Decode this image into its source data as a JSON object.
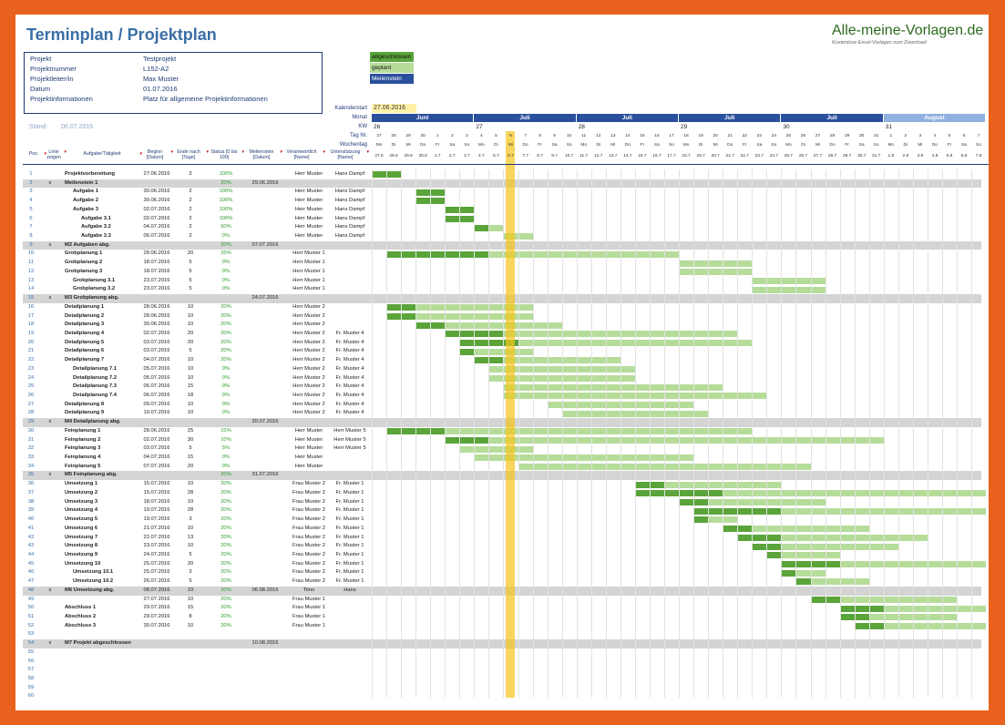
{
  "title": "Terminplan / Projektplan",
  "logo": {
    "text": "Alle-meine-Vorlagen.de",
    "sub": "Kostenlose Excel-Vorlagen zum Download"
  },
  "info": [
    {
      "label": "Projekt",
      "value": "Testprojekt"
    },
    {
      "label": "Projektnummer",
      "value": "L152-A2"
    },
    {
      "label": "Projektleiter/in",
      "value": "Max Muster"
    },
    {
      "label": "Datum",
      "value": "01.07.2016"
    },
    {
      "label": "Projektinformationen",
      "value": "Platz für allgemeine Projektinformationen"
    }
  ],
  "stand": {
    "label": "Stand:",
    "value": "06.07.2016"
  },
  "legend": [
    {
      "label": "abgeschlossen",
      "color": "#5aa43a"
    },
    {
      "label": "geplant",
      "color": "#b6dc9a"
    },
    {
      "label": "Meilenstein",
      "color": "#2a4f9c"
    }
  ],
  "kalenderstart": {
    "label": "Kalenderstart",
    "value": "27.06.2016"
  },
  "header_labels": {
    "monat": "Monat",
    "kw": "KW",
    "tag": "Tag Nr.",
    "wochentag": "Wochentag"
  },
  "columns": [
    "Pos.",
    "Linie zeigen",
    "Aufgabe/Tätigkeit",
    "Beginn [Datum]",
    "Ende nach [Tage]",
    "Status [0 bis 100]",
    "Meilenstein [Datum]",
    "Verantwortlich [Name]",
    "Unterstützung [Name]"
  ],
  "months": [
    {
      "label": "Juni",
      "start": 0,
      "span": 7
    },
    {
      "label": "Juli",
      "start": 7,
      "span": 7
    },
    {
      "label": "Juli",
      "start": 14,
      "span": 7
    },
    {
      "label": "Juli",
      "start": 21,
      "span": 7
    },
    {
      "label": "Juli",
      "start": 28,
      "span": 7
    },
    {
      "label": "August",
      "start": 35,
      "span": 7
    }
  ],
  "kws": [
    {
      "label": "26",
      "start": 0
    },
    {
      "label": "27",
      "start": 7
    },
    {
      "label": "28",
      "start": 14
    },
    {
      "label": "29",
      "start": 21
    },
    {
      "label": "30",
      "start": 28
    },
    {
      "label": "31",
      "start": 35
    }
  ],
  "day_numbers": [
    "27",
    "28",
    "29",
    "30",
    "1",
    "2",
    "3",
    "4",
    "5",
    "6",
    "7",
    "8",
    "9",
    "10",
    "11",
    "12",
    "13",
    "14",
    "15",
    "16",
    "17",
    "18",
    "19",
    "20",
    "21",
    "22",
    "23",
    "24",
    "25",
    "26",
    "27",
    "28",
    "29",
    "30",
    "31",
    "1",
    "2",
    "3",
    "4",
    "5",
    "6",
    "7"
  ],
  "weekdays": [
    "Mo",
    "Di",
    "Mi",
    "Do",
    "Fr",
    "Sa",
    "So",
    "Mo",
    "Di",
    "Mi",
    "Do",
    "Fr",
    "Sa",
    "So",
    "Mo",
    "Di",
    "Mi",
    "Do",
    "Fr",
    "Sa",
    "So",
    "Mo",
    "Di",
    "Mi",
    "Do",
    "Fr",
    "Sa",
    "So",
    "Mo",
    "Di",
    "Mi",
    "Do",
    "Fr",
    "Sa",
    "So",
    "Mo",
    "Di",
    "Mi",
    "Do",
    "Fr",
    "Sa",
    "So"
  ],
  "dates": [
    "27.6",
    "28.6",
    "29.6",
    "30.6",
    "1.7",
    "2.7",
    "3.7",
    "4.7",
    "5.7",
    "6.7",
    "7.7",
    "8.7",
    "9.7",
    "10.7",
    "11.7",
    "12.7",
    "13.7",
    "14.7",
    "15.7",
    "16.7",
    "17.7",
    "18.7",
    "19.7",
    "20.7",
    "21.7",
    "22.7",
    "23.7",
    "24.7",
    "25.7",
    "26.7",
    "27.7",
    "28.7",
    "29.7",
    "30.7",
    "31.7",
    "1.8",
    "2.8",
    "3.8",
    "4.8",
    "5.8",
    "6.8",
    "7.8"
  ],
  "today_index": 9,
  "colors": {
    "done": "#5aa43a",
    "planned": "#b6dc9a",
    "milestone": "#2a4f9c",
    "header": "#2a4f9c",
    "month_light": "#8fb0e0",
    "today": "#f5c518"
  },
  "rows": [
    {
      "pos": "1",
      "task": "Projektvorbereitung",
      "start": "27.06.2016",
      "dur": "2",
      "status": "100%",
      "resp": "Herr Muster",
      "support": "Hans Dampf",
      "ind": 0,
      "s": 0,
      "d": 2,
      "p": 1
    },
    {
      "pos": "2",
      "x": "x",
      "task": "Meilenstein 1",
      "status": "20%",
      "ms_date": "29.06.2016",
      "ind": 0,
      "ms": true,
      "m": 2
    },
    {
      "pos": "3",
      "task": "Aufgabe 1",
      "start": "30.06.2016",
      "dur": "2",
      "status": "100%",
      "resp": "Herr Muster",
      "support": "Hans Dampf",
      "ind": 1,
      "s": 3,
      "d": 2,
      "p": 1
    },
    {
      "pos": "4",
      "task": "Aufgabe 2",
      "start": "30.06.2016",
      "dur": "2",
      "status": "100%",
      "resp": "Herr Muster",
      "support": "Hans Dampf",
      "ind": 1,
      "s": 3,
      "d": 2,
      "p": 1
    },
    {
      "pos": "5",
      "task": "Aufgabe 3",
      "start": "02.07.2016",
      "dur": "2",
      "status": "100%",
      "resp": "Herr Muster",
      "support": "Hans Dampf",
      "ind": 1,
      "s": 5,
      "d": 2,
      "p": 1
    },
    {
      "pos": "6",
      "task": "Aufgabe 3.1",
      "start": "02.07.2016",
      "dur": "2",
      "status": "100%",
      "resp": "Herr Muster",
      "support": "Hans Dampf",
      "ind": 2,
      "s": 5,
      "d": 2,
      "p": 1
    },
    {
      "pos": "7",
      "task": "Aufgabe 3.2",
      "start": "04.07.2016",
      "dur": "2",
      "status": "50%",
      "resp": "Herr Muster",
      "support": "Hans Dampf",
      "ind": 2,
      "s": 7,
      "d": 2,
      "p": 0.5
    },
    {
      "pos": "8",
      "task": "Aufgabe 3.3",
      "start": "06.07.2016",
      "dur": "2",
      "status": "0%",
      "resp": "Herr Muster",
      "support": "Hans Dampf",
      "ind": 2,
      "s": 9,
      "d": 2,
      "p": 0
    },
    {
      "pos": "9",
      "x": "x",
      "task": "M2 Aufgaben abg.",
      "status": "20%",
      "ms_date": "07.07.2016",
      "ind": 0,
      "ms": true,
      "m": 10
    },
    {
      "pos": "10",
      "task": "Grobplanung 1",
      "start": "28.06.2016",
      "dur": "20",
      "status": "35%",
      "resp": "Herr Muster 1",
      "ind": 0,
      "s": 1,
      "d": 20,
      "p": 0.35
    },
    {
      "pos": "11",
      "task": "Grobplanung 2",
      "start": "18.07.2016",
      "dur": "5",
      "status": "0%",
      "resp": "Herr Muster 1",
      "ind": 0,
      "s": 21,
      "d": 5,
      "p": 0
    },
    {
      "pos": "12",
      "task": "Grobplanung 3",
      "start": "18.07.2016",
      "dur": "5",
      "status": "0%",
      "resp": "Herr Muster 1",
      "ind": 0,
      "s": 21,
      "d": 5,
      "p": 0
    },
    {
      "pos": "13",
      "task": "Grobplanung 3.1",
      "start": "23.07.2016",
      "dur": "5",
      "status": "0%",
      "resp": "Herr Muster 1",
      "ind": 1,
      "s": 26,
      "d": 5,
      "p": 0
    },
    {
      "pos": "14",
      "task": "Grobplanung 3.2",
      "start": "23.07.2016",
      "dur": "5",
      "status": "0%",
      "resp": "Herr Muster 1",
      "ind": 1,
      "s": 26,
      "d": 5,
      "p": 0
    },
    {
      "pos": "15",
      "x": "x",
      "task": "M3 Grobplanung abg.",
      "ms_date": "24.07.2016",
      "ind": 0,
      "ms": true,
      "m": 27
    },
    {
      "pos": "16",
      "task": "Detailplanung 1",
      "start": "28.06.2016",
      "dur": "10",
      "status": "20%",
      "resp": "Herr Muster 2",
      "ind": 0,
      "s": 1,
      "d": 10,
      "p": 0.2
    },
    {
      "pos": "17",
      "task": "Detailplanung 2",
      "start": "28.06.2016",
      "dur": "10",
      "status": "20%",
      "resp": "Herr Muster 2",
      "ind": 0,
      "s": 1,
      "d": 10,
      "p": 0.2
    },
    {
      "pos": "18",
      "task": "Detailplanung 3",
      "start": "30.06.2016",
      "dur": "10",
      "status": "20%",
      "resp": "Herr Muster 2",
      "ind": 0,
      "s": 3,
      "d": 10,
      "p": 0.2
    },
    {
      "pos": "19",
      "task": "Detailplanung 4",
      "start": "02.07.2016",
      "dur": "20",
      "status": "20%",
      "resp": "Herr Muster 2",
      "support": "Fr. Muster 4",
      "ind": 0,
      "s": 5,
      "d": 20,
      "p": 0.2
    },
    {
      "pos": "20",
      "task": "Detailplanung 5",
      "start": "03.07.2016",
      "dur": "20",
      "status": "20%",
      "resp": "Herr Muster 2",
      "support": "Fr. Muster 4",
      "ind": 0,
      "s": 6,
      "d": 20,
      "p": 0.2
    },
    {
      "pos": "21",
      "task": "Detailplanung 6",
      "start": "03.07.2016",
      "dur": "5",
      "status": "20%",
      "resp": "Herr Muster 2",
      "support": "Fr. Muster 4",
      "ind": 0,
      "s": 6,
      "d": 5,
      "p": 0.2
    },
    {
      "pos": "22",
      "task": "Detailplanung 7",
      "start": "04.07.2016",
      "dur": "10",
      "status": "20%",
      "resp": "Herr Muster 2",
      "support": "Fr. Muster 4",
      "ind": 0,
      "s": 7,
      "d": 10,
      "p": 0.2
    },
    {
      "pos": "23",
      "task": "Detailplanung 7.1",
      "start": "05.07.2016",
      "dur": "10",
      "status": "0%",
      "resp": "Herr Muster 2",
      "support": "Fr. Muster 4",
      "ind": 1,
      "s": 8,
      "d": 10,
      "p": 0
    },
    {
      "pos": "24",
      "task": "Detailplanung 7.2",
      "start": "05.07.2016",
      "dur": "10",
      "status": "0%",
      "resp": "Herr Muster 2",
      "support": "Fr. Muster 4",
      "ind": 1,
      "s": 8,
      "d": 10,
      "p": 0
    },
    {
      "pos": "25",
      "task": "Detailplanung 7.3",
      "start": "06.07.2016",
      "dur": "15",
      "status": "0%",
      "resp": "Herr Muster 2",
      "support": "Fr. Muster 4",
      "ind": 1,
      "s": 9,
      "d": 15,
      "p": 0
    },
    {
      "pos": "26",
      "task": "Detailplanung 7.4",
      "start": "06.07.2016",
      "dur": "18",
      "status": "0%",
      "resp": "Herr Muster 2",
      "support": "Fr. Muster 4",
      "ind": 1,
      "s": 9,
      "d": 18,
      "p": 0
    },
    {
      "pos": "27",
      "task": "Detailplanung 8",
      "start": "09.07.2016",
      "dur": "10",
      "status": "0%",
      "resp": "Herr Muster 2",
      "support": "Fr. Muster 4",
      "ind": 0,
      "s": 12,
      "d": 10,
      "p": 0
    },
    {
      "pos": "28",
      "task": "Detailplanung 9",
      "start": "10.07.2016",
      "dur": "10",
      "status": "0%",
      "resp": "Herr Muster 2",
      "support": "Fr. Muster 4",
      "ind": 0,
      "s": 13,
      "d": 10,
      "p": 0
    },
    {
      "pos": "29",
      "x": "x",
      "task": "M4 Detailplanung abg.",
      "ms_date": "20.07.2016",
      "ind": 0,
      "ms": true,
      "m": 23
    },
    {
      "pos": "30",
      "task": "Feinplanung 1",
      "start": "28.06.2016",
      "dur": "25",
      "status": "15%",
      "resp": "Herr Muster",
      "support": "Herr Muster 5",
      "ind": 0,
      "s": 1,
      "d": 25,
      "p": 0.15
    },
    {
      "pos": "31",
      "task": "Feinplanung 2",
      "start": "02.07.2016",
      "dur": "30",
      "status": "10%",
      "resp": "Herr Muster",
      "support": "Herr Muster 5",
      "ind": 0,
      "s": 5,
      "d": 30,
      "p": 0.1
    },
    {
      "pos": "32",
      "task": "Feinplanung 3",
      "start": "03.07.2016",
      "dur": "5",
      "status": "5%",
      "resp": "Herr Muster",
      "support": "Herr Muster 5",
      "ind": 0,
      "s": 6,
      "d": 5,
      "p": 0.05
    },
    {
      "pos": "33",
      "task": "Feinplanung 4",
      "start": "04.07.2016",
      "dur": "15",
      "status": "0%",
      "resp": "Herr Muster",
      "ind": 0,
      "s": 7,
      "d": 15,
      "p": 0
    },
    {
      "pos": "34",
      "task": "Feinplanung 5",
      "start": "07.07.2016",
      "dur": "20",
      "status": "0%",
      "resp": "Herr Muster",
      "ind": 0,
      "s": 10,
      "d": 20,
      "p": 0
    },
    {
      "pos": "35",
      "x": "x",
      "task": "M5 Feinplanung abg.",
      "status": "20%",
      "ms_date": "31.07.2016",
      "ind": 0,
      "ms": true,
      "m": 34
    },
    {
      "pos": "36",
      "task": "Umsetzung 1",
      "start": "15.07.2016",
      "dur": "10",
      "status": "20%",
      "resp": "Frau Muster 2",
      "support": "Fr. Muster 1",
      "ind": 0,
      "s": 18,
      "d": 10,
      "p": 0.2
    },
    {
      "pos": "37",
      "task": "Umsetzung 2",
      "start": "15.07.2016",
      "dur": "28",
      "status": "20%",
      "resp": "Frau Muster 2",
      "support": "Fr. Muster 1",
      "ind": 0,
      "s": 18,
      "d": 28,
      "p": 0.2
    },
    {
      "pos": "38",
      "task": "Umsetzung 3",
      "start": "18.07.2016",
      "dur": "10",
      "status": "20%",
      "resp": "Frau Muster 2",
      "support": "Fr. Muster 1",
      "ind": 0,
      "s": 21,
      "d": 10,
      "p": 0.2
    },
    {
      "pos": "39",
      "task": "Umsetzung 4",
      "start": "19.07.2016",
      "dur": "28",
      "status": "20%",
      "resp": "Frau Muster 2",
      "support": "Fr. Muster 1",
      "ind": 0,
      "s": 22,
      "d": 28,
      "p": 0.2
    },
    {
      "pos": "40",
      "task": "Umsetzung 5",
      "start": "19.07.2016",
      "dur": "3",
      "status": "20%",
      "resp": "Frau Muster 2",
      "support": "Fr. Muster 1",
      "ind": 0,
      "s": 22,
      "d": 3,
      "p": 0.2
    },
    {
      "pos": "41",
      "task": "Umsetzung 6",
      "start": "21.07.2016",
      "dur": "10",
      "status": "20%",
      "resp": "Frau Muster 2",
      "support": "Fr. Muster 1",
      "ind": 0,
      "s": 24,
      "d": 10,
      "p": 0.2
    },
    {
      "pos": "42",
      "task": "Umsetzung 7",
      "start": "22.07.2016",
      "dur": "13",
      "status": "20%",
      "resp": "Frau Muster 2",
      "support": "Fr. Muster 1",
      "ind": 0,
      "s": 25,
      "d": 13,
      "p": 0.2
    },
    {
      "pos": "43",
      "task": "Umsetzung 8",
      "start": "23.07.2016",
      "dur": "10",
      "status": "20%",
      "resp": "Frau Muster 2",
      "support": "Fr. Muster 1",
      "ind": 0,
      "s": 26,
      "d": 10,
      "p": 0.2
    },
    {
      "pos": "44",
      "task": "Umsetzung 9",
      "start": "24.07.2016",
      "dur": "5",
      "status": "20%",
      "resp": "Frau Muster 2",
      "support": "Fr. Muster 1",
      "ind": 0,
      "s": 27,
      "d": 5,
      "p": 0.2
    },
    {
      "pos": "45",
      "task": "Umsetzung 10",
      "start": "25.07.2016",
      "dur": "20",
      "status": "20%",
      "resp": "Frau Muster 2",
      "support": "Fr. Muster 1",
      "ind": 0,
      "s": 28,
      "d": 20,
      "p": 0.2
    },
    {
      "pos": "46",
      "task": "Umsetzung 10.1",
      "start": "25.07.2016",
      "dur": "3",
      "status": "20%",
      "resp": "Frau Muster 2",
      "support": "Fr. Muster 1",
      "ind": 1,
      "s": 28,
      "d": 3,
      "p": 0.2
    },
    {
      "pos": "47",
      "task": "Umsetzung 10.2",
      "start": "26.07.2016",
      "dur": "5",
      "status": "20%",
      "resp": "Frau Muster 2",
      "support": "Fr. Muster 1",
      "ind": 1,
      "s": 29,
      "d": 5,
      "p": 0.2
    },
    {
      "pos": "48",
      "x": "x",
      "task": "M6 Umsetzung abg.",
      "start": "08.07.2016",
      "dur": "10",
      "status": "20%",
      "ms_date": "06.08.2016",
      "resp": "Timo",
      "support": "Hans",
      "ind": 0,
      "ms": true,
      "m": 40,
      "s": 11,
      "d": 10,
      "p": 0.2
    },
    {
      "pos": "49",
      "start": "27.07.2016",
      "dur": "10",
      "status": "20%",
      "resp": "Frau Muster 1",
      "ind": 0,
      "s": 30,
      "d": 10,
      "p": 0.2
    },
    {
      "pos": "50",
      "task": "Abschluss 1",
      "start": "29.07.2016",
      "dur": "15",
      "status": "20%",
      "resp": "Frau Muster 1",
      "ind": 0,
      "s": 32,
      "d": 15,
      "p": 0.2
    },
    {
      "pos": "51",
      "task": "Abschluss 2",
      "start": "29.07.2016",
      "dur": "8",
      "status": "20%",
      "resp": "Frau Muster 1",
      "ind": 0,
      "s": 32,
      "d": 8,
      "p": 0.2
    },
    {
      "pos": "52",
      "task": "Abschluss 3",
      "start": "30.07.2016",
      "dur": "10",
      "status": "20%",
      "resp": "Frau Muster 1",
      "ind": 0,
      "s": 33,
      "d": 10,
      "p": 0.2
    },
    {
      "pos": "53",
      "ind": 0
    },
    {
      "pos": "54",
      "x": "x",
      "task": "M7 Projekt abgeschlossen",
      "ms_date": "10.08.2016",
      "ind": 0,
      "ms": true
    },
    {
      "pos": "55"
    },
    {
      "pos": "56"
    },
    {
      "pos": "57"
    },
    {
      "pos": "58"
    },
    {
      "pos": "59"
    },
    {
      "pos": "60"
    }
  ]
}
